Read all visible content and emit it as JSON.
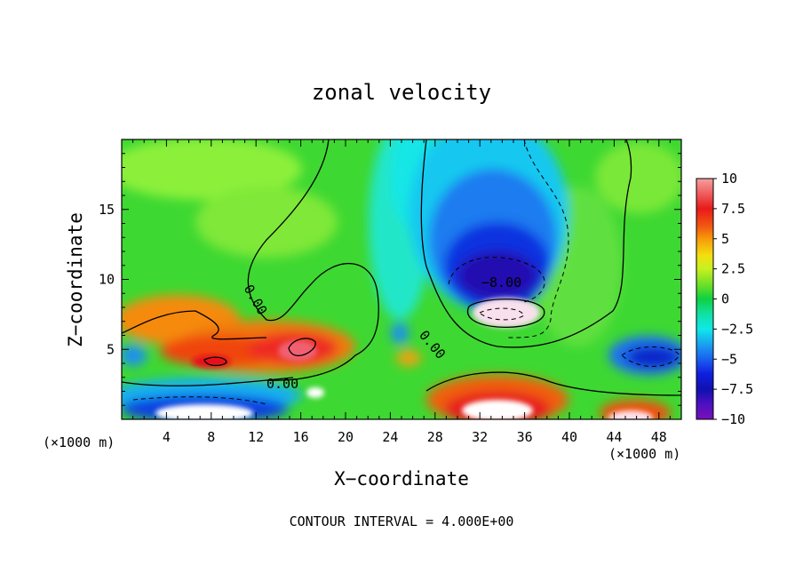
{
  "chart_data": {
    "type": "heatmap",
    "title": "zonal velocity",
    "xlabel": "X−coordinate",
    "ylabel": "Z−coordinate",
    "x_unit_left": "(×1000 m)",
    "x_unit_right": "(×1000 m)",
    "xlim": [
      0,
      50
    ],
    "ylim": [
      0,
      20
    ],
    "x_ticks": [
      4,
      8,
      12,
      16,
      20,
      24,
      28,
      32,
      36,
      40,
      44,
      48
    ],
    "y_ticks": [
      5,
      10,
      15
    ],
    "x_tick_labels": [
      "4",
      "8",
      "12",
      "16",
      "20",
      "24",
      "28",
      "32",
      "36",
      "40",
      "44",
      "48"
    ],
    "y_tick_labels": [
      "5",
      "10",
      "15"
    ],
    "colorbar": {
      "min": -10,
      "max": 10,
      "ticks": [
        10,
        7.5,
        5,
        2.5,
        0,
        -2.5,
        -5,
        -7.5,
        -10
      ],
      "tick_labels": [
        "10",
        "7.5",
        "5",
        "2.5",
        "0",
        "−2.5",
        "−5",
        "−7.5",
        "−10"
      ]
    },
    "contour_labels": [
      {
        "text": "0.00",
        "x": 11.5,
        "y": 9.3
      },
      {
        "text": "0.00",
        "x": 27.5,
        "y": 5.3
      },
      {
        "text": "0.00",
        "x": 14.0,
        "y": 2.7
      },
      {
        "text": "−8.00",
        "x": 33.0,
        "y": 9.9
      }
    ],
    "features": [
      {
        "kind": "max",
        "x": 8,
        "y": 5.8,
        "value": 8
      },
      {
        "kind": "max",
        "x": 16,
        "y": 5.0,
        "value": 9
      },
      {
        "kind": "min",
        "x": 33,
        "y": 12.5,
        "value": -9
      },
      {
        "kind": "max",
        "x": 33,
        "y": 0.8,
        "value": 11
      },
      {
        "kind": "min",
        "x": 6,
        "y": 0.8,
        "value": -11
      },
      {
        "kind": "min",
        "x": 46,
        "y": 4.5,
        "value": -8
      },
      {
        "kind": "max",
        "x": 46,
        "y": 0.4,
        "value": 9
      }
    ],
    "footer": "CONTOUR INTERVAL = 4.000E+00"
  }
}
